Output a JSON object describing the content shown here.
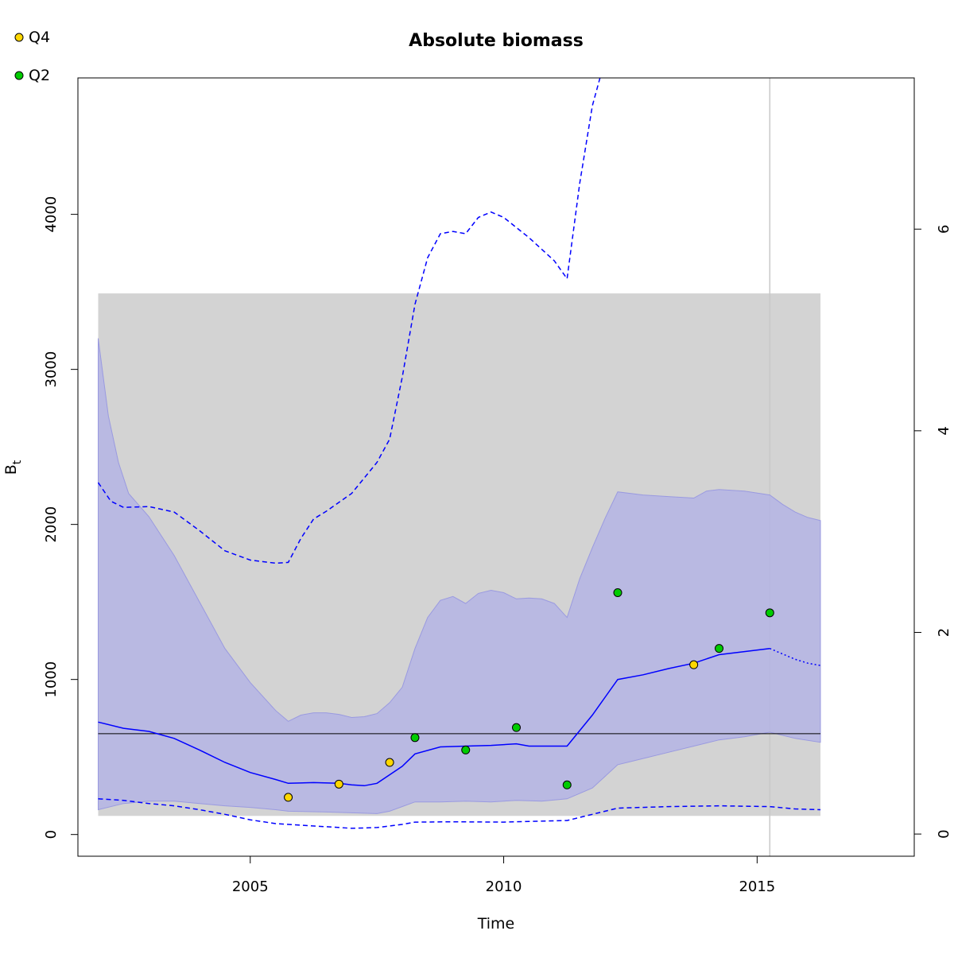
{
  "chart_data": {
    "type": "line",
    "title": "Absolute biomass",
    "xlabel": "Time",
    "ylabel": "B",
    "ylabel_sub": "t",
    "xlim": [
      2001.6,
      2018.1
    ],
    "ylim": [
      -140,
      4880
    ],
    "ylim_right": [
      -0.22,
      7.5
    ],
    "x_ticks": [
      2005,
      2010,
      2015
    ],
    "y_ticks": [
      0,
      1000,
      2000,
      3000,
      4000
    ],
    "y_ticks_right": [
      0,
      2,
      4,
      6
    ],
    "grid": false,
    "legend_position": "top-left",
    "colors": {
      "estimate": "#0000ff",
      "ci_fill": "#b3b3e6",
      "band_fill": "#d3d3d3",
      "Q4": "#ffd700",
      "Q2": "#00cc00",
      "reference": "#000000",
      "vline": "#c8c8c8"
    },
    "gray_band": {
      "x": [
        2002.0,
        2016.25
      ],
      "y": [
        120,
        3490
      ]
    },
    "reference_line": {
      "y": 650,
      "x": [
        2002.0,
        2016.25
      ]
    },
    "vline_x": 2015.25,
    "series": [
      {
        "name": "Q4",
        "kind": "points",
        "points": [
          [
            2005.75,
            240
          ],
          [
            2006.75,
            325
          ],
          [
            2007.75,
            465
          ],
          [
            2013.75,
            1095
          ]
        ]
      },
      {
        "name": "Q2",
        "kind": "points",
        "points": [
          [
            2008.25,
            625
          ],
          [
            2009.25,
            545
          ],
          [
            2010.25,
            690
          ],
          [
            2011.25,
            320
          ],
          [
            2012.25,
            1560
          ],
          [
            2014.25,
            1200
          ],
          [
            2015.25,
            1430
          ]
        ]
      },
      {
        "kind": "line",
        "style": "solid",
        "points": [
          [
            2002.0,
            725
          ],
          [
            2002.5,
            685
          ],
          [
            2003.0,
            665
          ],
          [
            2003.5,
            620
          ],
          [
            2004.0,
            545
          ],
          [
            2004.5,
            465
          ],
          [
            2005.0,
            400
          ],
          [
            2005.5,
            355
          ],
          [
            2005.75,
            330
          ],
          [
            2006.25,
            335
          ],
          [
            2006.75,
            330
          ],
          [
            2007.0,
            320
          ],
          [
            2007.25,
            315
          ],
          [
            2007.5,
            330
          ],
          [
            2008.0,
            440
          ],
          [
            2008.25,
            520
          ],
          [
            2008.75,
            565
          ],
          [
            2009.25,
            570
          ],
          [
            2009.75,
            575
          ],
          [
            2010.25,
            585
          ],
          [
            2010.5,
            570
          ],
          [
            2011.25,
            570
          ],
          [
            2011.75,
            770
          ],
          [
            2012.25,
            1000
          ],
          [
            2012.75,
            1030
          ],
          [
            2013.25,
            1070
          ],
          [
            2013.75,
            1105
          ],
          [
            2014.25,
            1160
          ],
          [
            2014.75,
            1180
          ],
          [
            2015.25,
            1200
          ]
        ]
      },
      {
        "kind": "line",
        "style": "dotted",
        "points": [
          [
            2015.25,
            1200
          ],
          [
            2015.5,
            1165
          ],
          [
            2015.75,
            1130
          ],
          [
            2016.0,
            1105
          ],
          [
            2016.25,
            1090
          ]
        ]
      },
      {
        "kind": "ci",
        "upper": [
          [
            2002.0,
            3200
          ],
          [
            2002.2,
            2700
          ],
          [
            2002.4,
            2400
          ],
          [
            2002.6,
            2200
          ],
          [
            2003.0,
            2050
          ],
          [
            2003.5,
            1800
          ],
          [
            2004.0,
            1500
          ],
          [
            2004.5,
            1200
          ],
          [
            2005.0,
            980
          ],
          [
            2005.5,
            800
          ],
          [
            2005.75,
            730
          ],
          [
            2006.0,
            770
          ],
          [
            2006.25,
            785
          ],
          [
            2006.5,
            785
          ],
          [
            2006.75,
            775
          ],
          [
            2007.0,
            755
          ],
          [
            2007.25,
            760
          ],
          [
            2007.5,
            780
          ],
          [
            2007.75,
            850
          ],
          [
            2008.0,
            950
          ],
          [
            2008.25,
            1200
          ],
          [
            2008.5,
            1400
          ],
          [
            2008.75,
            1510
          ],
          [
            2009.0,
            1535
          ],
          [
            2009.25,
            1490
          ],
          [
            2009.5,
            1555
          ],
          [
            2009.75,
            1575
          ],
          [
            2010.0,
            1560
          ],
          [
            2010.25,
            1520
          ],
          [
            2010.5,
            1525
          ],
          [
            2010.75,
            1520
          ],
          [
            2011.0,
            1490
          ],
          [
            2011.25,
            1400
          ],
          [
            2011.5,
            1650
          ],
          [
            2011.75,
            1850
          ],
          [
            2012.0,
            2040
          ],
          [
            2012.25,
            2210
          ],
          [
            2012.75,
            2190
          ],
          [
            2013.25,
            2180
          ],
          [
            2013.75,
            2170
          ],
          [
            2014.0,
            2215
          ],
          [
            2014.25,
            2225
          ],
          [
            2014.75,
            2215
          ],
          [
            2015.25,
            2190
          ],
          [
            2015.5,
            2130
          ],
          [
            2015.75,
            2080
          ],
          [
            2016.0,
            2045
          ],
          [
            2016.25,
            2025
          ]
        ],
        "lower": [
          [
            2002.0,
            160
          ],
          [
            2002.5,
            200
          ],
          [
            2003.0,
            215
          ],
          [
            2003.5,
            215
          ],
          [
            2004.0,
            200
          ],
          [
            2004.5,
            185
          ],
          [
            2005.0,
            175
          ],
          [
            2005.5,
            160
          ],
          [
            2005.75,
            150
          ],
          [
            2006.5,
            145
          ],
          [
            2007.0,
            140
          ],
          [
            2007.5,
            135
          ],
          [
            2007.75,
            150
          ],
          [
            2008.25,
            210
          ],
          [
            2008.75,
            210
          ],
          [
            2009.25,
            215
          ],
          [
            2009.75,
            210
          ],
          [
            2010.25,
            220
          ],
          [
            2010.75,
            215
          ],
          [
            2011.25,
            230
          ],
          [
            2011.75,
            300
          ],
          [
            2012.25,
            450
          ],
          [
            2012.75,
            490
          ],
          [
            2013.25,
            530
          ],
          [
            2013.75,
            570
          ],
          [
            2014.25,
            610
          ],
          [
            2014.75,
            630
          ],
          [
            2015.25,
            660
          ],
          [
            2015.75,
            620
          ],
          [
            2016.25,
            595
          ]
        ]
      },
      {
        "kind": "line",
        "style": "dashed",
        "points": [
          [
            2002.0,
            2270
          ],
          [
            2002.25,
            2150
          ],
          [
            2002.5,
            2110
          ],
          [
            2003.0,
            2115
          ],
          [
            2003.5,
            2080
          ],
          [
            2004.0,
            1960
          ],
          [
            2004.5,
            1830
          ],
          [
            2005.0,
            1770
          ],
          [
            2005.5,
            1750
          ],
          [
            2005.75,
            1755
          ],
          [
            2006.0,
            1910
          ],
          [
            2006.25,
            2035
          ],
          [
            2006.5,
            2085
          ],
          [
            2007.0,
            2200
          ],
          [
            2007.5,
            2400
          ],
          [
            2007.75,
            2550
          ],
          [
            2008.0,
            2950
          ],
          [
            2008.25,
            3420
          ],
          [
            2008.5,
            3720
          ],
          [
            2008.75,
            3875
          ],
          [
            2009.0,
            3890
          ],
          [
            2009.25,
            3875
          ],
          [
            2009.5,
            3980
          ],
          [
            2009.75,
            4015
          ],
          [
            2010.0,
            3980
          ],
          [
            2010.5,
            3850
          ],
          [
            2011.0,
            3700
          ],
          [
            2011.25,
            3585
          ],
          [
            2011.5,
            4200
          ],
          [
            2011.75,
            4700
          ],
          [
            2011.9,
            4880
          ]
        ]
      },
      {
        "kind": "line",
        "style": "dashed",
        "points": [
          [
            2002.0,
            230
          ],
          [
            2002.5,
            220
          ],
          [
            2003.0,
            200
          ],
          [
            2003.5,
            185
          ],
          [
            2004.0,
            160
          ],
          [
            2004.5,
            130
          ],
          [
            2005.0,
            95
          ],
          [
            2005.5,
            70
          ],
          [
            2006.0,
            60
          ],
          [
            2006.5,
            50
          ],
          [
            2007.0,
            40
          ],
          [
            2007.5,
            45
          ],
          [
            2008.0,
            65
          ],
          [
            2008.25,
            80
          ],
          [
            2009.0,
            82
          ],
          [
            2010.0,
            80
          ],
          [
            2011.25,
            90
          ],
          [
            2011.75,
            130
          ],
          [
            2012.25,
            170
          ],
          [
            2013.25,
            180
          ],
          [
            2014.25,
            185
          ],
          [
            2015.25,
            180
          ],
          [
            2015.75,
            165
          ],
          [
            2016.25,
            160
          ]
        ]
      }
    ]
  }
}
